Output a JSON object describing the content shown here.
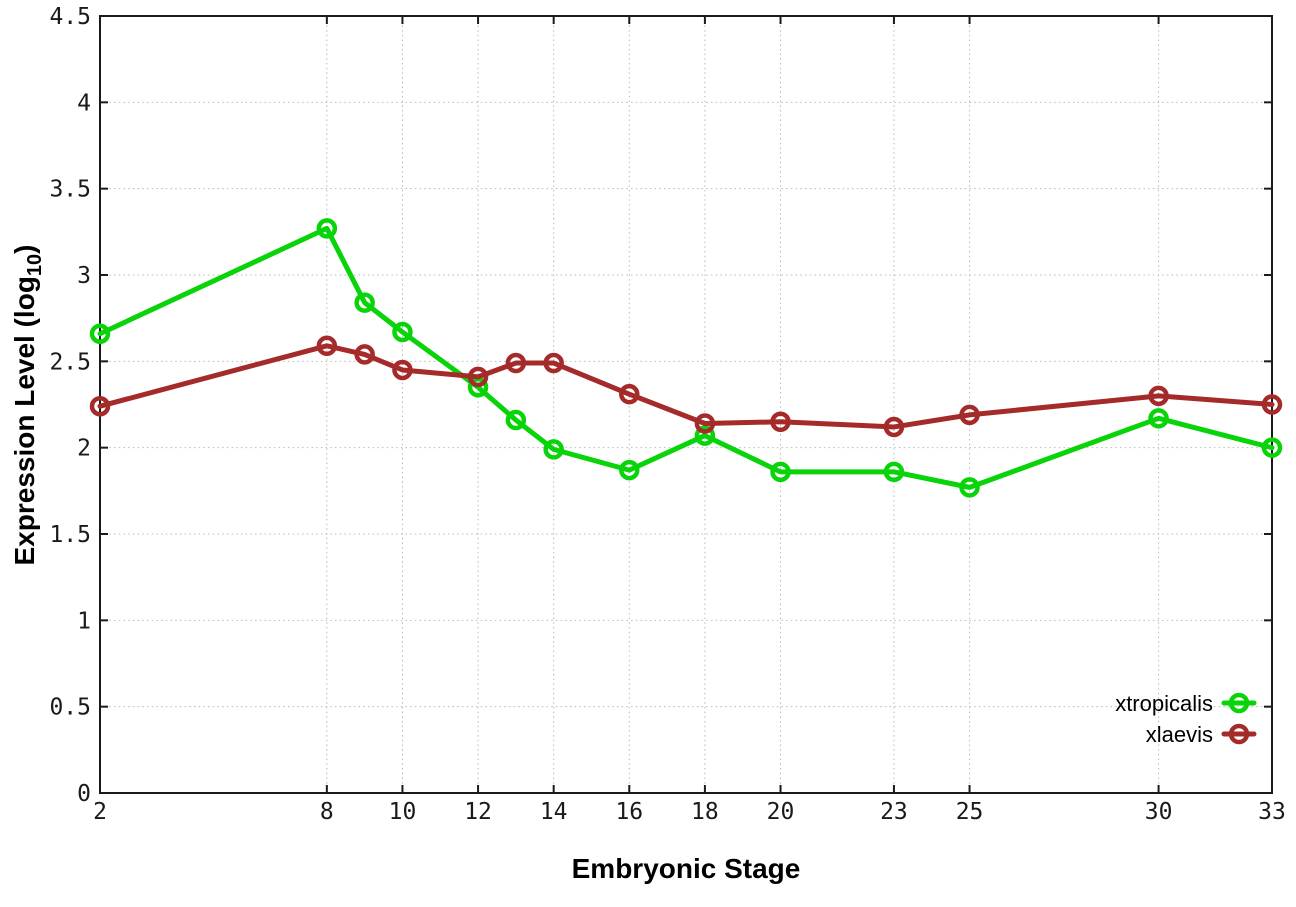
{
  "chart_data": {
    "type": "line",
    "title": "",
    "xlabel": "Embryonic Stage",
    "ylabel": "Expression Level (log10)",
    "ylabel_base": "Expression Level (log",
    "ylabel_sub": "10",
    "ylabel_close": ")",
    "xlim": [
      2,
      33
    ],
    "ylim": [
      0,
      4.5
    ],
    "grid": true,
    "legend_position": "bottom-right",
    "x_ticks": [
      2,
      8,
      10,
      12,
      14,
      16,
      18,
      20,
      23,
      25,
      30,
      33
    ],
    "y_ticks": [
      0,
      0.5,
      1,
      1.5,
      2,
      2.5,
      3,
      3.5,
      4,
      4.5
    ],
    "x": [
      2,
      8,
      9,
      10,
      12,
      13,
      14,
      16,
      18,
      20,
      23,
      25,
      30,
      33
    ],
    "series": [
      {
        "name": "xtropicalis",
        "color": "#09d309",
        "marker": "open-circle",
        "values": [
          2.66,
          3.27,
          2.84,
          2.67,
          2.35,
          2.16,
          1.99,
          1.87,
          2.07,
          1.86,
          1.86,
          1.77,
          2.17,
          2.0
        ]
      },
      {
        "name": "xlaevis",
        "color": "#a52a2a",
        "marker": "open-circle",
        "values": [
          2.24,
          2.59,
          2.54,
          2.45,
          2.41,
          2.49,
          2.49,
          2.31,
          2.14,
          2.15,
          2.12,
          2.19,
          2.3,
          2.25
        ]
      }
    ],
    "colors": {
      "grid": "#b9b9b9",
      "axis": "#1a1a1a",
      "background": "#ffffff"
    }
  }
}
